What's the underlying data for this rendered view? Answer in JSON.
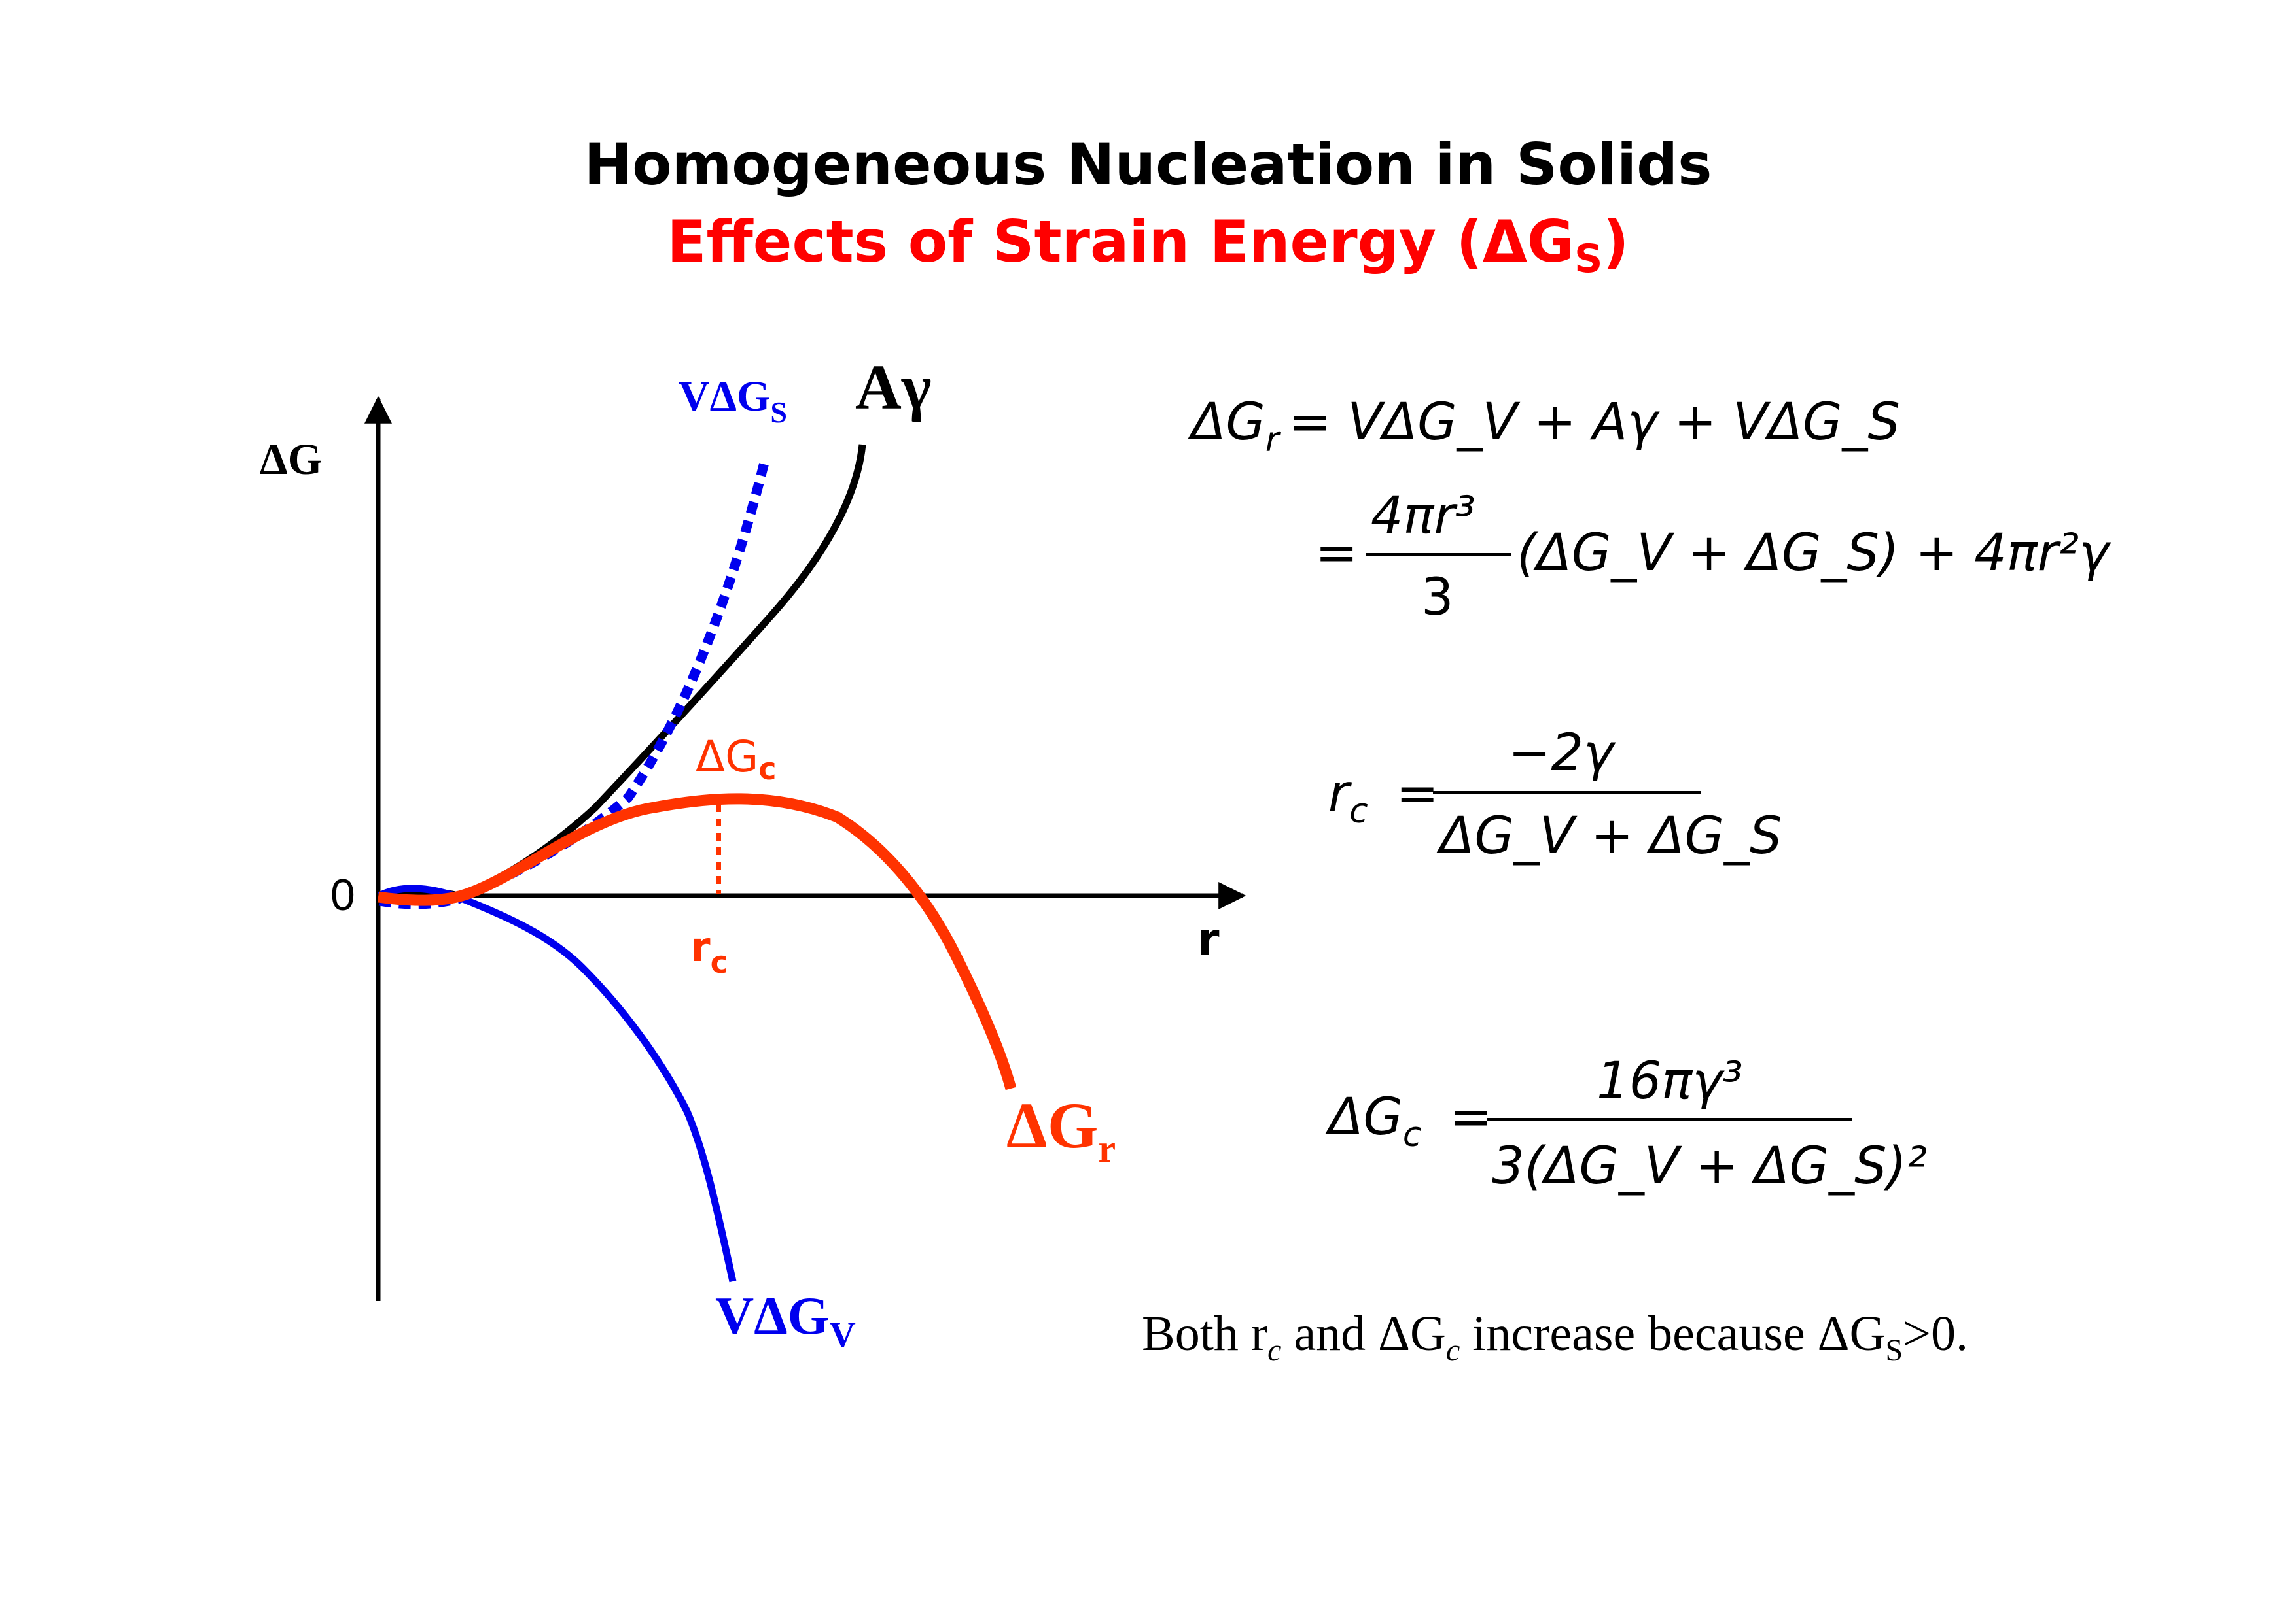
{
  "title": "Homogeneous Nucleation in Solids",
  "subtitle": {
    "prefix": "Effects of Strain Energy (",
    "symbol": "ΔG",
    "sub": "S",
    "suffix": ")"
  },
  "plot": {
    "y_axis_label": "ΔG",
    "x_axis_label": "r",
    "origin_label": "0",
    "curve_labels": {
      "strain": {
        "main": "VΔG",
        "sub": "S"
      },
      "surface": {
        "main": "Aγ"
      },
      "critical": {
        "main": "ΔG",
        "sub": "c"
      },
      "total": {
        "main": "ΔG",
        "sub": "r"
      },
      "volume": {
        "main": "VΔG",
        "sub": "V"
      },
      "rc": {
        "main": "r",
        "sub": "c"
      }
    },
    "colors": {
      "total": "#ff3300",
      "volume": "#0000ee",
      "surface": "#000000",
      "strain": "#0000ee",
      "critical": "#ff3300"
    }
  },
  "equations": {
    "eq1": {
      "lhs": "ΔG",
      "lhs_sub": "r",
      "rhs": "= VΔG_V + Aγ + VΔG_S"
    },
    "eq2": {
      "num": "4πr³",
      "den": "3",
      "rest": "(ΔG_V + ΔG_S) + 4πr²γ"
    },
    "eq3": {
      "lhs": "r",
      "lhs_sub": "c",
      "num": "−2γ",
      "den": "ΔG_V + ΔG_S"
    },
    "eq4": {
      "lhs": "ΔG",
      "lhs_sub": "c",
      "num": "16πγ³",
      "den": "3(ΔG_V + ΔG_S)²"
    }
  },
  "note": {
    "a": "Both r",
    "a_sub": "c",
    "b": " and ΔG",
    "b_sub": "c",
    "c": " increase because ΔG",
    "c_sub": "S",
    "d": ">0."
  }
}
